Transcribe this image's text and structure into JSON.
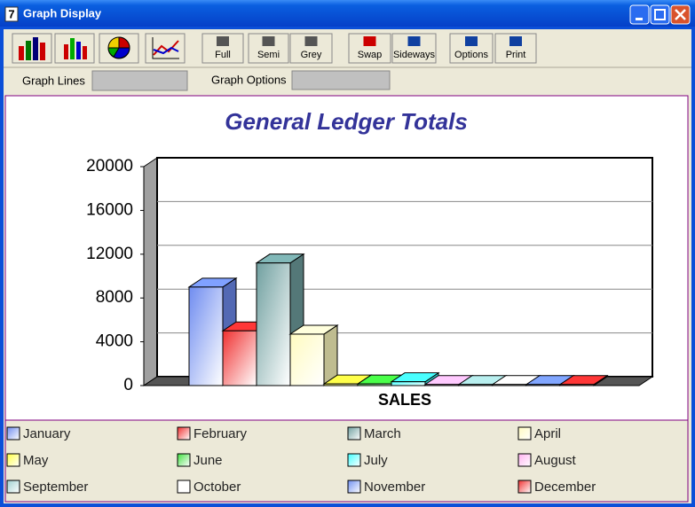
{
  "window": {
    "title": "Graph Display",
    "icon": "7"
  },
  "toolbar": {
    "buttons": [
      "Full",
      "Semi",
      "Grey",
      "Swap",
      "Sideways",
      "Options",
      "Print"
    ]
  },
  "fields": {
    "graph_lines": "Graph Lines",
    "graph_options": "Graph Options"
  },
  "chart_data": {
    "type": "bar",
    "title": "General Ledger Totals",
    "categories": [
      "SALES"
    ],
    "series": [
      {
        "name": "January",
        "color": "#6f8cf0",
        "values": [
          9000
        ]
      },
      {
        "name": "February",
        "color": "#f03030",
        "values": [
          5000
        ]
      },
      {
        "name": "March",
        "color": "#70a0a0",
        "values": [
          11200
        ]
      },
      {
        "name": "April",
        "color": "#fffbc0",
        "values": [
          4700
        ]
      },
      {
        "name": "May",
        "color": "#ffff40",
        "values": [
          150
        ]
      },
      {
        "name": "June",
        "color": "#40e040",
        "values": [
          150
        ]
      },
      {
        "name": "July",
        "color": "#40ffff",
        "values": [
          350
        ]
      },
      {
        "name": "August",
        "color": "#ffb0f0",
        "values": [
          100
        ]
      },
      {
        "name": "September",
        "color": "#a0d0d0",
        "values": [
          100
        ]
      },
      {
        "name": "October",
        "color": "#ffffff",
        "values": [
          100
        ]
      },
      {
        "name": "November",
        "color": "#7090f0",
        "values": [
          100
        ]
      },
      {
        "name": "December",
        "color": "#f03030",
        "values": [
          100
        ]
      }
    ],
    "ylim": [
      0,
      20000
    ],
    "yticks": [
      0,
      4000,
      8000,
      12000,
      16000,
      20000
    ],
    "grid": true,
    "legend": "bottom"
  }
}
